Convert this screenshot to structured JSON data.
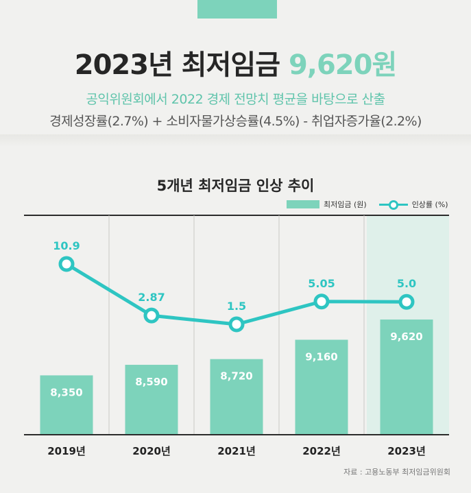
{
  "header": {
    "title_main": "2023년 최저임금",
    "title_accent": "9,620원",
    "subtitle_line1": "공익위원회에서 2022 경제 전망치 평균을 바탕으로 산출",
    "subtitle_line2": "경제성장률(2.7%) + 소비자물가상승률(4.5%) - 취업자증가율(2.2%)"
  },
  "legend": {
    "bar_label": "최저임금 (원)",
    "line_label": "인상률 (%)"
  },
  "source": "자료 : 고용노동부 최저임금위원회",
  "colors": {
    "bar": "#7dd3bb",
    "line": "#2ec5c2",
    "highlight_bg": "#dff0ea",
    "accent_text": "#7dd3bb"
  },
  "chart_data": {
    "type": "bar",
    "title": "5개년 최저임금 인상 추이",
    "categories": [
      "2019년",
      "2020년",
      "2021년",
      "2022년",
      "2023년"
    ],
    "series": [
      {
        "name": "최저임금 (원)",
        "type": "bar",
        "values": [
          8350,
          8590,
          8720,
          9160,
          9620
        ],
        "labels": [
          "8,350",
          "8,590",
          "8,720",
          "9,160",
          "9,620"
        ]
      },
      {
        "name": "인상률 (%)",
        "type": "line",
        "values": [
          10.9,
          2.87,
          1.5,
          5.05,
          5.0
        ],
        "labels": [
          "10.9",
          "2.87",
          "1.5",
          "5.05",
          "5.0"
        ]
      }
    ],
    "highlight_category": "2023년",
    "legend_position": "top-right",
    "grid": false
  }
}
